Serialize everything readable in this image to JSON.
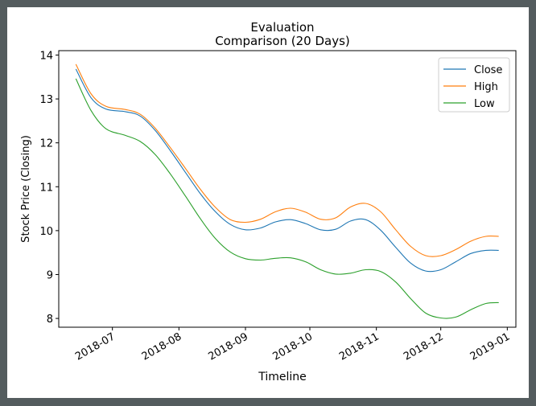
{
  "chart_data": {
    "type": "line",
    "title": "Evaluation\nComparison (20 Days)",
    "xlabel": "Timeline",
    "ylabel": "Stock Price (Closing)",
    "xlim": [
      "2018-06-06",
      "2019-01-05"
    ],
    "ylim": [
      7.8,
      14.1
    ],
    "x_ticks": [
      "2018-07-01",
      "2018-08-01",
      "2018-09-01",
      "2018-10-01",
      "2018-11-01",
      "2018-12-01",
      "2019-01-01"
    ],
    "x_tick_labels": [
      "2018-07",
      "2018-08",
      "2018-09",
      "2018-10",
      "2018-11",
      "2018-12",
      "2019-01"
    ],
    "y_ticks": [
      8,
      9,
      10,
      11,
      12,
      13,
      14
    ],
    "grid": false,
    "legend_position": "top-right",
    "x": [
      "2018-06-14",
      "2018-06-21",
      "2018-06-28",
      "2018-07-07",
      "2018-07-14",
      "2018-07-21",
      "2018-07-28",
      "2018-08-04",
      "2018-08-11",
      "2018-08-18",
      "2018-08-25",
      "2018-09-01",
      "2018-09-08",
      "2018-09-15",
      "2018-09-22",
      "2018-09-29",
      "2018-10-06",
      "2018-10-13",
      "2018-10-20",
      "2018-10-27",
      "2018-11-03",
      "2018-11-10",
      "2018-11-17",
      "2018-11-24",
      "2018-12-01",
      "2018-12-08",
      "2018-12-15",
      "2018-12-22",
      "2018-12-28"
    ],
    "series": [
      {
        "name": "Close",
        "color": "#1f77b4",
        "values": [
          13.68,
          13.03,
          12.77,
          12.71,
          12.61,
          12.28,
          11.82,
          11.33,
          10.84,
          10.43,
          10.14,
          10.02,
          10.06,
          10.2,
          10.25,
          10.16,
          10.02,
          10.03,
          10.22,
          10.25,
          10.01,
          9.62,
          9.26,
          9.08,
          9.11,
          9.29,
          9.48,
          9.55,
          9.55
        ]
      },
      {
        "name": "High",
        "color": "#ff7f0e",
        "values": [
          13.79,
          13.12,
          12.83,
          12.76,
          12.65,
          12.33,
          11.89,
          11.42,
          10.94,
          10.53,
          10.25,
          10.19,
          10.26,
          10.43,
          10.51,
          10.42,
          10.26,
          10.29,
          10.54,
          10.62,
          10.43,
          10.02,
          9.64,
          9.43,
          9.43,
          9.57,
          9.76,
          9.87,
          9.87
        ]
      },
      {
        "name": "Low",
        "color": "#2ca02c",
        "values": [
          13.46,
          12.74,
          12.32,
          12.17,
          12.03,
          11.73,
          11.29,
          10.79,
          10.27,
          9.82,
          9.51,
          9.36,
          9.33,
          9.37,
          9.38,
          9.29,
          9.11,
          9.01,
          9.03,
          9.11,
          9.07,
          8.83,
          8.45,
          8.12,
          8.01,
          8.03,
          8.2,
          8.34,
          8.36
        ]
      }
    ]
  }
}
